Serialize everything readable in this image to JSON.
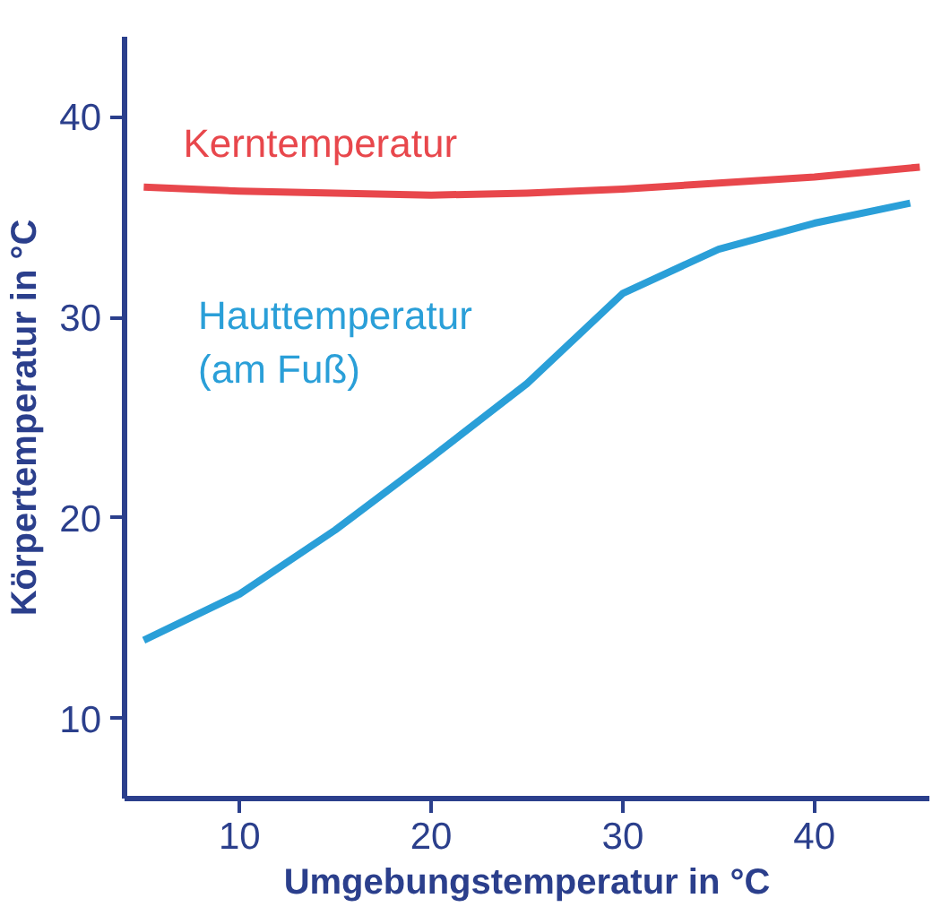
{
  "chart_data": {
    "type": "line",
    "xlabel": "Umgebungstemperatur in °C",
    "ylabel": "Körpertemperatur in °C",
    "xlim": [
      4,
      46
    ],
    "ylim": [
      6,
      44
    ],
    "xticks": [
      10,
      20,
      30,
      40
    ],
    "yticks": [
      10,
      20,
      30,
      40
    ],
    "grid": false,
    "marker": "none",
    "line_style": "solid",
    "series": [
      {
        "name": "Kerntemperatur",
        "color": "#e8474c",
        "x": [
          5,
          10,
          15,
          20,
          25,
          30,
          35,
          40,
          45.5
        ],
        "values": [
          36.5,
          36.3,
          36.2,
          36.1,
          36.2,
          36.4,
          36.7,
          37.0,
          37.5
        ]
      },
      {
        "name": "Hauttemperatur\n(am Fuß)",
        "color": "#2a9fd8",
        "x": [
          5,
          10,
          15,
          20,
          25,
          30,
          35,
          40,
          45
        ],
        "values": [
          13.9,
          16.2,
          19.4,
          23.0,
          26.7,
          31.2,
          33.4,
          34.7,
          35.7
        ]
      }
    ]
  }
}
